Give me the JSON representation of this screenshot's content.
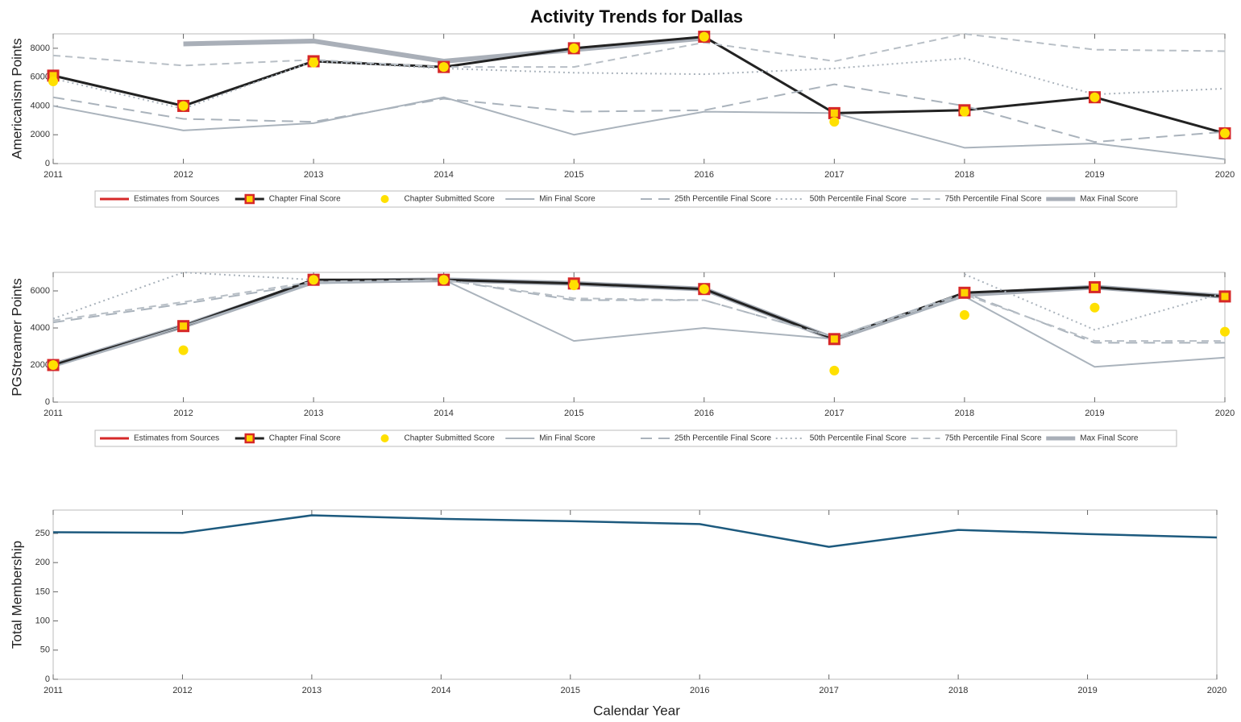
{
  "title": "Activity Trends for Dallas",
  "x_label": "Calendar Year",
  "chart_data": [
    {
      "type": "line",
      "y_label": "Americanism Points",
      "x": [
        2011,
        2012,
        2013,
        2014,
        2015,
        2016,
        2017,
        2018,
        2019,
        2020
      ],
      "xlim": [
        2011,
        2020
      ],
      "xticks": [
        2011,
        2012,
        2013,
        2014,
        2015,
        2016,
        2017,
        2018,
        2019,
        2020
      ],
      "ylim": [
        0,
        9000
      ],
      "yticks": [
        0,
        2000,
        4000,
        6000,
        8000
      ],
      "legend": "below",
      "series": [
        {
          "name": "Estimates from Sources",
          "color": "#d62828",
          "dash": "solid",
          "width": 3,
          "values": [
            null,
            null,
            null,
            null,
            null,
            null,
            null,
            null,
            null,
            null
          ]
        },
        {
          "name": "Chapter Final Score",
          "color": "#222222",
          "dash": "solid",
          "width": 3,
          "marker": "square",
          "values": [
            6100,
            4000,
            7100,
            6700,
            8000,
            8800,
            3500,
            3700,
            4600,
            2100
          ]
        },
        {
          "name": "Chapter Submitted Score",
          "color": "#ffe000",
          "dash": "none",
          "marker": "circle",
          "values": [
            5700,
            4000,
            7000,
            6700,
            8000,
            8800,
            2900,
            3600,
            4600,
            2100
          ]
        },
        {
          "name": "Min Final Score",
          "color": "#aab3bc",
          "dash": "solid",
          "width": 2,
          "values": [
            4000,
            2300,
            2800,
            4600,
            2000,
            3600,
            3500,
            1100,
            1400,
            300
          ]
        },
        {
          "name": "25th Percentile Final Score",
          "color": "#aab3bc",
          "dash": "long",
          "width": 2,
          "values": [
            4600,
            3100,
            2900,
            4500,
            3600,
            3700,
            5500,
            4000,
            1500,
            2200
          ]
        },
        {
          "name": "50th Percentile Final Score",
          "color": "#aab3bc",
          "dash": "dotted",
          "width": 2,
          "values": [
            5900,
            3800,
            7100,
            6600,
            6300,
            6200,
            6600,
            7300,
            4800,
            5200
          ]
        },
        {
          "name": "75th Percentile Final Score",
          "color": "#b8bfc6",
          "dash": "dashed",
          "width": 2,
          "values": [
            7500,
            6800,
            7200,
            6700,
            6700,
            8400,
            7100,
            9000,
            7900,
            7800
          ]
        },
        {
          "name": "Max Final Score",
          "color": "#a9afb8",
          "dash": "solid",
          "width": 6,
          "values": [
            null,
            8300,
            8500,
            7100,
            7900,
            8700,
            null,
            null,
            null,
            null
          ]
        }
      ]
    },
    {
      "type": "line",
      "y_label": "PGStreamer Points",
      "x": [
        2011,
        2012,
        2013,
        2014,
        2015,
        2016,
        2017,
        2018,
        2019,
        2020
      ],
      "xlim": [
        2011,
        2020
      ],
      "xticks": [
        2011,
        2012,
        2013,
        2014,
        2015,
        2016,
        2017,
        2018,
        2019,
        2020
      ],
      "ylim": [
        0,
        7000
      ],
      "yticks": [
        0,
        2000,
        4000,
        6000
      ],
      "legend": "below",
      "series": [
        {
          "name": "Estimates from Sources",
          "color": "#d62828",
          "dash": "solid",
          "width": 3,
          "values": [
            null,
            null,
            null,
            null,
            null,
            null,
            null,
            null,
            null,
            null
          ]
        },
        {
          "name": "Chapter Final Score",
          "color": "#222222",
          "dash": "solid",
          "width": 3,
          "marker": "square",
          "values": [
            2000,
            4100,
            6600,
            6600,
            6400,
            6100,
            3400,
            5900,
            6200,
            5700
          ]
        },
        {
          "name": "Chapter Submitted Score",
          "color": "#ffe000",
          "dash": "none",
          "marker": "circle",
          "values": [
            2000,
            2800,
            6600,
            6600,
            6300,
            6100,
            1700,
            4700,
            5100,
            3800
          ]
        },
        {
          "name": "Min Final Score",
          "color": "#aab3bc",
          "dash": "solid",
          "width": 2,
          "values": [
            1900,
            4100,
            6400,
            6600,
            3300,
            4000,
            3400,
            5700,
            1900,
            2400
          ]
        },
        {
          "name": "25th Percentile Final Score",
          "color": "#aab3bc",
          "dash": "long",
          "width": 2,
          "values": [
            4300,
            5300,
            6400,
            6600,
            5500,
            5500,
            3500,
            5900,
            3200,
            3200
          ]
        },
        {
          "name": "50th Percentile Final Score",
          "color": "#aab3bc",
          "dash": "dotted",
          "width": 2,
          "values": [
            4500,
            7000,
            6600,
            null,
            6300,
            null,
            null,
            6900,
            3900,
            5900
          ]
        },
        {
          "name": "75th Percentile Final Score",
          "color": "#b8bfc6",
          "dash": "dashed",
          "width": 2,
          "values": [
            4400,
            5400,
            6500,
            6600,
            5600,
            5500,
            3500,
            5800,
            3300,
            3300
          ]
        },
        {
          "name": "Max Final Score",
          "color": "#a9afb8",
          "dash": "solid",
          "width": 6,
          "values": [
            2000,
            4100,
            6500,
            6600,
            6400,
            6100,
            3400,
            5800,
            6200,
            5700
          ]
        }
      ]
    },
    {
      "type": "line",
      "y_label": "Total Membership",
      "x": [
        2011,
        2012,
        2013,
        2014,
        2015,
        2016,
        2017,
        2018,
        2019,
        2020
      ],
      "xlim": [
        2011,
        2020
      ],
      "xticks": [
        2011,
        2012,
        2013,
        2014,
        2015,
        2016,
        2017,
        2018,
        2019,
        2020
      ],
      "ylim": [
        0,
        290
      ],
      "yticks": [
        0,
        50,
        100,
        150,
        200,
        250
      ],
      "legend": "none",
      "series": [
        {
          "name": "Total Membership",
          "color": "#1d5a7e",
          "dash": "solid",
          "width": 2.5,
          "values": [
            252,
            251,
            281,
            275,
            271,
            266,
            227,
            256,
            249,
            243
          ]
        }
      ]
    }
  ]
}
